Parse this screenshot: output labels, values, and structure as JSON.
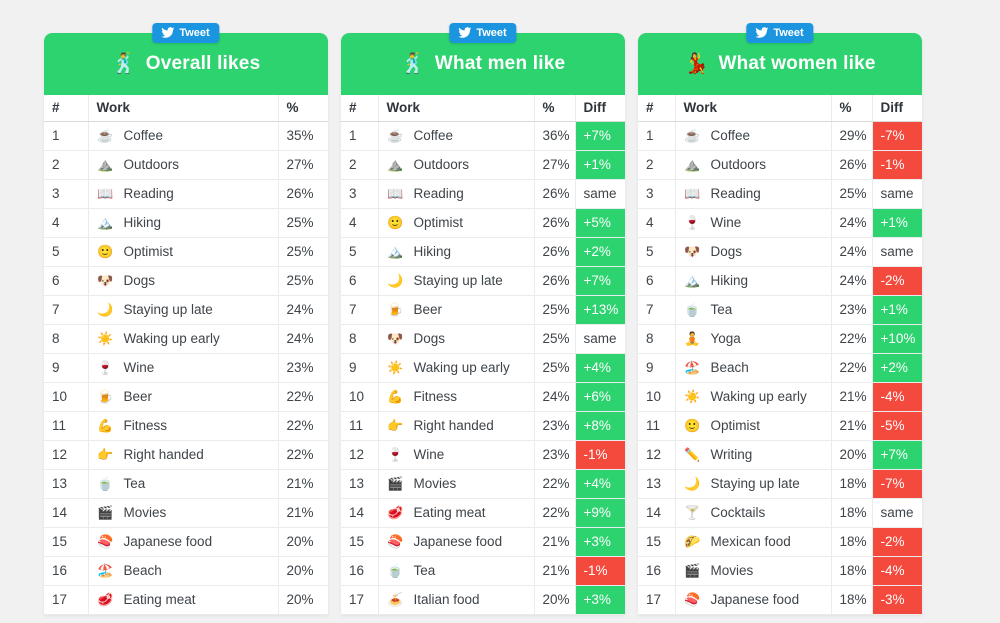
{
  "tweet_label": "Tweet",
  "colors": {
    "positive_green": "#2dd36f",
    "negative_red": "#f4493d",
    "tweet_blue": "#1b95e0",
    "page_background": "#f1f1f2"
  },
  "tables": [
    {
      "emoji": "🕺",
      "title": "Overall likes",
      "columns": [
        "#",
        "Work",
        "%"
      ],
      "rows": [
        {
          "rank": 1,
          "emoji": "☕",
          "label": "Coffee",
          "pct": "35%"
        },
        {
          "rank": 2,
          "emoji": "⛰️",
          "label": "Outdoors",
          "pct": "27%"
        },
        {
          "rank": 3,
          "emoji": "📖",
          "label": "Reading",
          "pct": "26%"
        },
        {
          "rank": 4,
          "emoji": "🏔️",
          "label": "Hiking",
          "pct": "25%"
        },
        {
          "rank": 5,
          "emoji": "🙂",
          "label": "Optimist",
          "pct": "25%"
        },
        {
          "rank": 6,
          "emoji": "🐶",
          "label": "Dogs",
          "pct": "25%"
        },
        {
          "rank": 7,
          "emoji": "🌙",
          "label": "Staying up late",
          "pct": "24%"
        },
        {
          "rank": 8,
          "emoji": "☀️",
          "label": "Waking up early",
          "pct": "24%"
        },
        {
          "rank": 9,
          "emoji": "🍷",
          "label": "Wine",
          "pct": "23%"
        },
        {
          "rank": 10,
          "emoji": "🍺",
          "label": "Beer",
          "pct": "22%"
        },
        {
          "rank": 11,
          "emoji": "💪",
          "label": "Fitness",
          "pct": "22%"
        },
        {
          "rank": 12,
          "emoji": "👉",
          "label": "Right handed",
          "pct": "22%"
        },
        {
          "rank": 13,
          "emoji": "🍵",
          "label": "Tea",
          "pct": "21%"
        },
        {
          "rank": 14,
          "emoji": "🎬",
          "label": "Movies",
          "pct": "21%"
        },
        {
          "rank": 15,
          "emoji": "🍣",
          "label": "Japanese food",
          "pct": "20%"
        },
        {
          "rank": 16,
          "emoji": "🏖️",
          "label": "Beach",
          "pct": "20%"
        },
        {
          "rank": 17,
          "emoji": "🥩",
          "label": "Eating meat",
          "pct": "20%"
        }
      ]
    },
    {
      "emoji": "🕺",
      "title": "What men like",
      "columns": [
        "#",
        "Work",
        "%",
        "Diff"
      ],
      "rows": [
        {
          "rank": 1,
          "emoji": "☕",
          "label": "Coffee",
          "pct": "36%",
          "diff": "+7%"
        },
        {
          "rank": 2,
          "emoji": "⛰️",
          "label": "Outdoors",
          "pct": "27%",
          "diff": "+1%"
        },
        {
          "rank": 3,
          "emoji": "📖",
          "label": "Reading",
          "pct": "26%",
          "diff": "same"
        },
        {
          "rank": 4,
          "emoji": "🙂",
          "label": "Optimist",
          "pct": "26%",
          "diff": "+5%"
        },
        {
          "rank": 5,
          "emoji": "🏔️",
          "label": "Hiking",
          "pct": "26%",
          "diff": "+2%"
        },
        {
          "rank": 6,
          "emoji": "🌙",
          "label": "Staying up late",
          "pct": "26%",
          "diff": "+7%"
        },
        {
          "rank": 7,
          "emoji": "🍺",
          "label": "Beer",
          "pct": "25%",
          "diff": "+13%"
        },
        {
          "rank": 8,
          "emoji": "🐶",
          "label": "Dogs",
          "pct": "25%",
          "diff": "same"
        },
        {
          "rank": 9,
          "emoji": "☀️",
          "label": "Waking up early",
          "pct": "25%",
          "diff": "+4%"
        },
        {
          "rank": 10,
          "emoji": "💪",
          "label": "Fitness",
          "pct": "24%",
          "diff": "+6%"
        },
        {
          "rank": 11,
          "emoji": "👉",
          "label": "Right handed",
          "pct": "23%",
          "diff": "+8%"
        },
        {
          "rank": 12,
          "emoji": "🍷",
          "label": "Wine",
          "pct": "23%",
          "diff": "-1%"
        },
        {
          "rank": 13,
          "emoji": "🎬",
          "label": "Movies",
          "pct": "22%",
          "diff": "+4%"
        },
        {
          "rank": 14,
          "emoji": "🥩",
          "label": "Eating meat",
          "pct": "22%",
          "diff": "+9%"
        },
        {
          "rank": 15,
          "emoji": "🍣",
          "label": "Japanese food",
          "pct": "21%",
          "diff": "+3%"
        },
        {
          "rank": 16,
          "emoji": "🍵",
          "label": "Tea",
          "pct": "21%",
          "diff": "-1%"
        },
        {
          "rank": 17,
          "emoji": "🍝",
          "label": "Italian food",
          "pct": "20%",
          "diff": "+3%"
        }
      ]
    },
    {
      "emoji": "💃",
      "title": "What women like",
      "columns": [
        "#",
        "Work",
        "%",
        "Diff"
      ],
      "rows": [
        {
          "rank": 1,
          "emoji": "☕",
          "label": "Coffee",
          "pct": "29%",
          "diff": "-7%"
        },
        {
          "rank": 2,
          "emoji": "⛰️",
          "label": "Outdoors",
          "pct": "26%",
          "diff": "-1%"
        },
        {
          "rank": 3,
          "emoji": "📖",
          "label": "Reading",
          "pct": "25%",
          "diff": "same"
        },
        {
          "rank": 4,
          "emoji": "🍷",
          "label": "Wine",
          "pct": "24%",
          "diff": "+1%"
        },
        {
          "rank": 5,
          "emoji": "🐶",
          "label": "Dogs",
          "pct": "24%",
          "diff": "same"
        },
        {
          "rank": 6,
          "emoji": "🏔️",
          "label": "Hiking",
          "pct": "24%",
          "diff": "-2%"
        },
        {
          "rank": 7,
          "emoji": "🍵",
          "label": "Tea",
          "pct": "23%",
          "diff": "+1%"
        },
        {
          "rank": 8,
          "emoji": "🧘",
          "label": "Yoga",
          "pct": "22%",
          "diff": "+10%"
        },
        {
          "rank": 9,
          "emoji": "🏖️",
          "label": "Beach",
          "pct": "22%",
          "diff": "+2%"
        },
        {
          "rank": 10,
          "emoji": "☀️",
          "label": "Waking up early",
          "pct": "21%",
          "diff": "-4%"
        },
        {
          "rank": 11,
          "emoji": "🙂",
          "label": "Optimist",
          "pct": "21%",
          "diff": "-5%"
        },
        {
          "rank": 12,
          "emoji": "✏️",
          "label": "Writing",
          "pct": "20%",
          "diff": "+7%"
        },
        {
          "rank": 13,
          "emoji": "🌙",
          "label": "Staying up late",
          "pct": "18%",
          "diff": "-7%"
        },
        {
          "rank": 14,
          "emoji": "🍸",
          "label": "Cocktails",
          "pct": "18%",
          "diff": "same"
        },
        {
          "rank": 15,
          "emoji": "🌮",
          "label": "Mexican food",
          "pct": "18%",
          "diff": "-2%"
        },
        {
          "rank": 16,
          "emoji": "🎬",
          "label": "Movies",
          "pct": "18%",
          "diff": "-4%"
        },
        {
          "rank": 17,
          "emoji": "🍣",
          "label": "Japanese food",
          "pct": "18%",
          "diff": "-3%"
        }
      ]
    }
  ]
}
